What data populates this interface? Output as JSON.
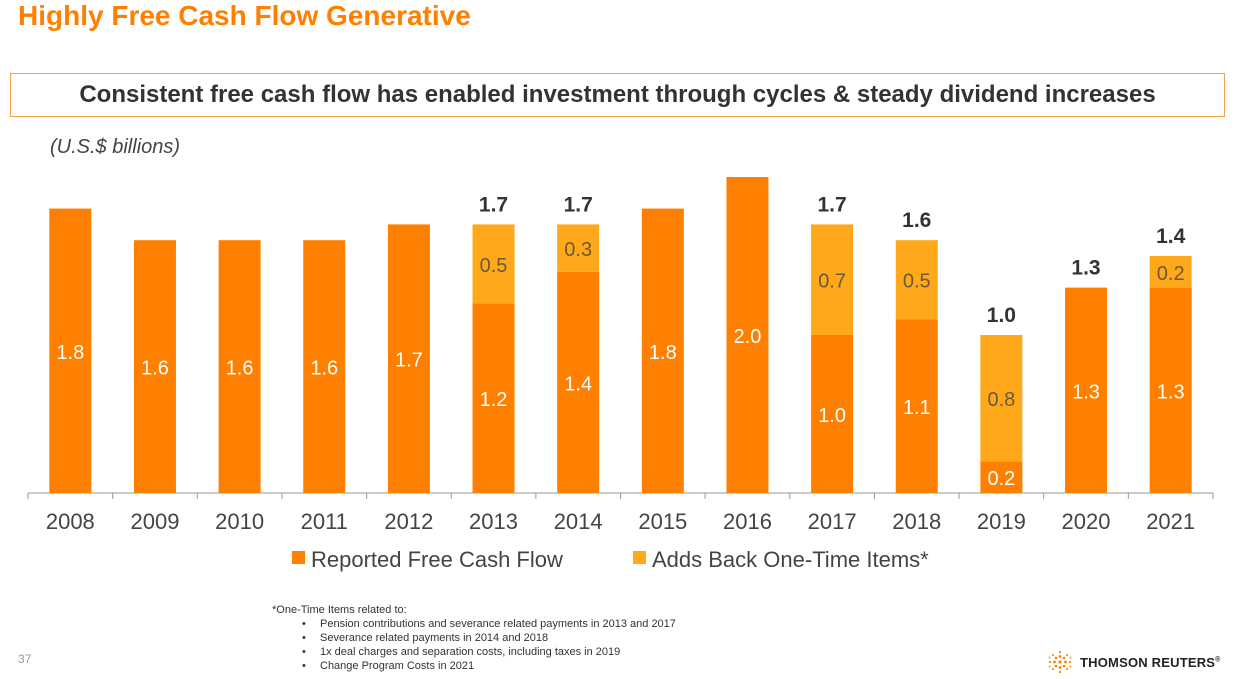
{
  "header": {
    "title": "Highly Free Cash Flow Generative",
    "subtitle": "Consistent free cash flow has enabled investment through cycles & steady dividend increases",
    "units": "(U.S.$ billions)"
  },
  "colors": {
    "reported": "#FF8000",
    "addback": "#FFA81A",
    "title": "#FF8000"
  },
  "chart_data": {
    "type": "bar",
    "stacked": true,
    "categories": [
      "2008",
      "2009",
      "2010",
      "2011",
      "2012",
      "2013",
      "2014",
      "2015",
      "2016",
      "2017",
      "2018",
      "2019",
      "2020",
      "2021"
    ],
    "series": [
      {
        "name": "Reported Free Cash Flow",
        "values": [
          1.8,
          1.6,
          1.6,
          1.6,
          1.7,
          1.2,
          1.4,
          1.8,
          2.0,
          1.0,
          1.1,
          0.2,
          1.3,
          1.3
        ]
      },
      {
        "name": "Adds Back One-Time Items*",
        "values": [
          0,
          0,
          0,
          0,
          0,
          0.5,
          0.3,
          0,
          0,
          0.7,
          0.5,
          0.8,
          0,
          0.2
        ]
      }
    ],
    "totals": [
      "",
      "",
      "",
      "",
      "",
      "1.7",
      "1.7",
      "",
      "",
      "1.7",
      "1.6",
      "1.0",
      "1.3",
      "1.4"
    ],
    "ylim": [
      0,
      2.0
    ],
    "grid": false,
    "legend": "bottom"
  },
  "footnote": {
    "heading": "*One-Time Items related to:",
    "items": [
      "Pension contributions and severance related payments in 2013 and 2017",
      "Severance related payments in 2014 and 2018",
      "1x deal charges and separation costs, including taxes in 2019",
      "Change Program Costs in 2021"
    ]
  },
  "footer": {
    "page_number": "37",
    "brand": "THOMSON REUTERS",
    "brand_mark": "®",
    "logo_icon": "thomson-reuters-dots-icon"
  }
}
